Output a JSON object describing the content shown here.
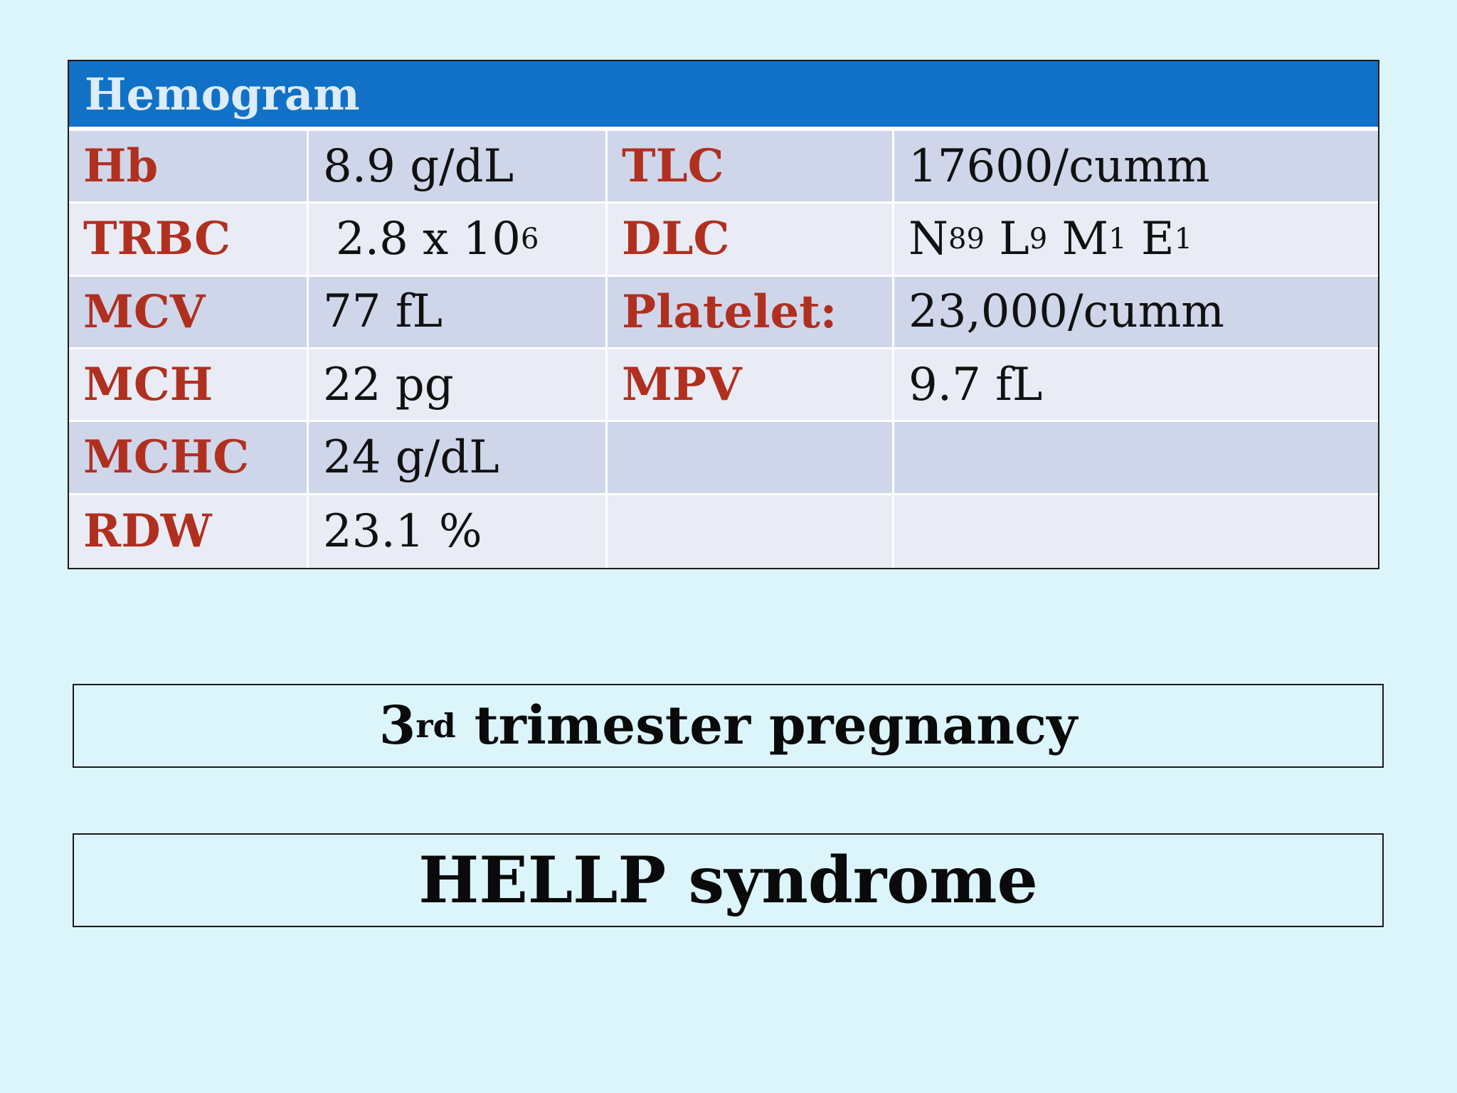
{
  "table": {
    "title": "Hemogram",
    "rows": [
      {
        "p1": "Hb",
        "v1": "8.9 g/dL",
        "p2": "TLC",
        "v2": "17600/cumm"
      },
      {
        "p1": "TRBC",
        "v1": "2.8 x 10",
        "v1_sup": "6",
        "p2": "DLC"
      },
      {
        "p1": "MCV",
        "v1": "77 fL",
        "p2": "Platelet:",
        "v2": "23,000/cumm"
      },
      {
        "p1": "MCH",
        "v1": "22 pg",
        "p2": "MPV",
        "v2": "9.7 fL"
      },
      {
        "p1": "MCHC",
        "v1": "24 g/dL"
      },
      {
        "p1": "RDW",
        "v1": "23.1 %"
      }
    ],
    "dlc": {
      "n": "N",
      "n_sub": "89",
      "l": "L",
      "l_sub": "9",
      "m": "M",
      "m_sub": "1",
      "e": "E",
      "e_sub": "1"
    }
  },
  "trimester": {
    "number": "3",
    "suffix": "rd",
    "text": " trimester pregnancy"
  },
  "diagnosis": {
    "text": "HELLP syndrome"
  },
  "colors": {
    "background": "#dcf5fb",
    "header": "#1071c7",
    "parameter_text": "#b03020",
    "row_dark": "#cfd6ea",
    "row_light": "#e9ecf5"
  }
}
